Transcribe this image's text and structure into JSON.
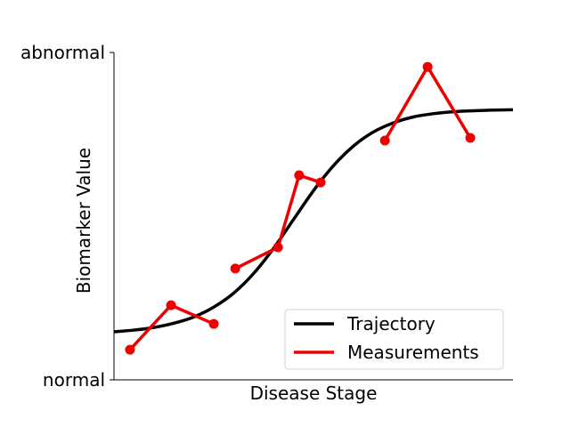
{
  "chart_data": {
    "type": "line",
    "xlabel": "Disease Stage",
    "ylabel": "Biomarker Value",
    "y_tick_labels": [
      "normal",
      "abnormal"
    ],
    "xlim": [
      0,
      1
    ],
    "ylim": [
      0,
      1
    ],
    "grid": false,
    "legend_position": "lower-right",
    "series": [
      {
        "name": "Trajectory",
        "kind": "sigmoid-curve",
        "color": "#000000",
        "x": [
          0.0,
          0.05,
          0.1,
          0.15,
          0.2,
          0.25,
          0.3,
          0.35,
          0.4,
          0.45,
          0.5,
          0.55,
          0.6,
          0.65,
          0.7,
          0.75,
          0.8,
          0.85,
          0.9,
          0.95,
          1.0
        ],
        "y": [
          0.147,
          0.152,
          0.16,
          0.173,
          0.192,
          0.222,
          0.265,
          0.325,
          0.402,
          0.49,
          0.578,
          0.654,
          0.714,
          0.757,
          0.785,
          0.803,
          0.813,
          0.819,
          0.822,
          0.824,
          0.825
        ]
      },
      {
        "name": "Measurements",
        "kind": "segments-with-markers",
        "color": "#ee0000",
        "segments": [
          {
            "x": [
              0.04,
              0.143,
              0.25
            ],
            "y": [
              0.092,
              0.228,
              0.171
            ]
          },
          {
            "x": [
              0.304,
              0.411,
              0.464,
              0.518
            ],
            "y": [
              0.34,
              0.405,
              0.625,
              0.603
            ]
          },
          {
            "x": [
              0.679,
              0.786,
              0.893
            ],
            "y": [
              0.731,
              0.956,
              0.739
            ]
          }
        ]
      }
    ]
  }
}
